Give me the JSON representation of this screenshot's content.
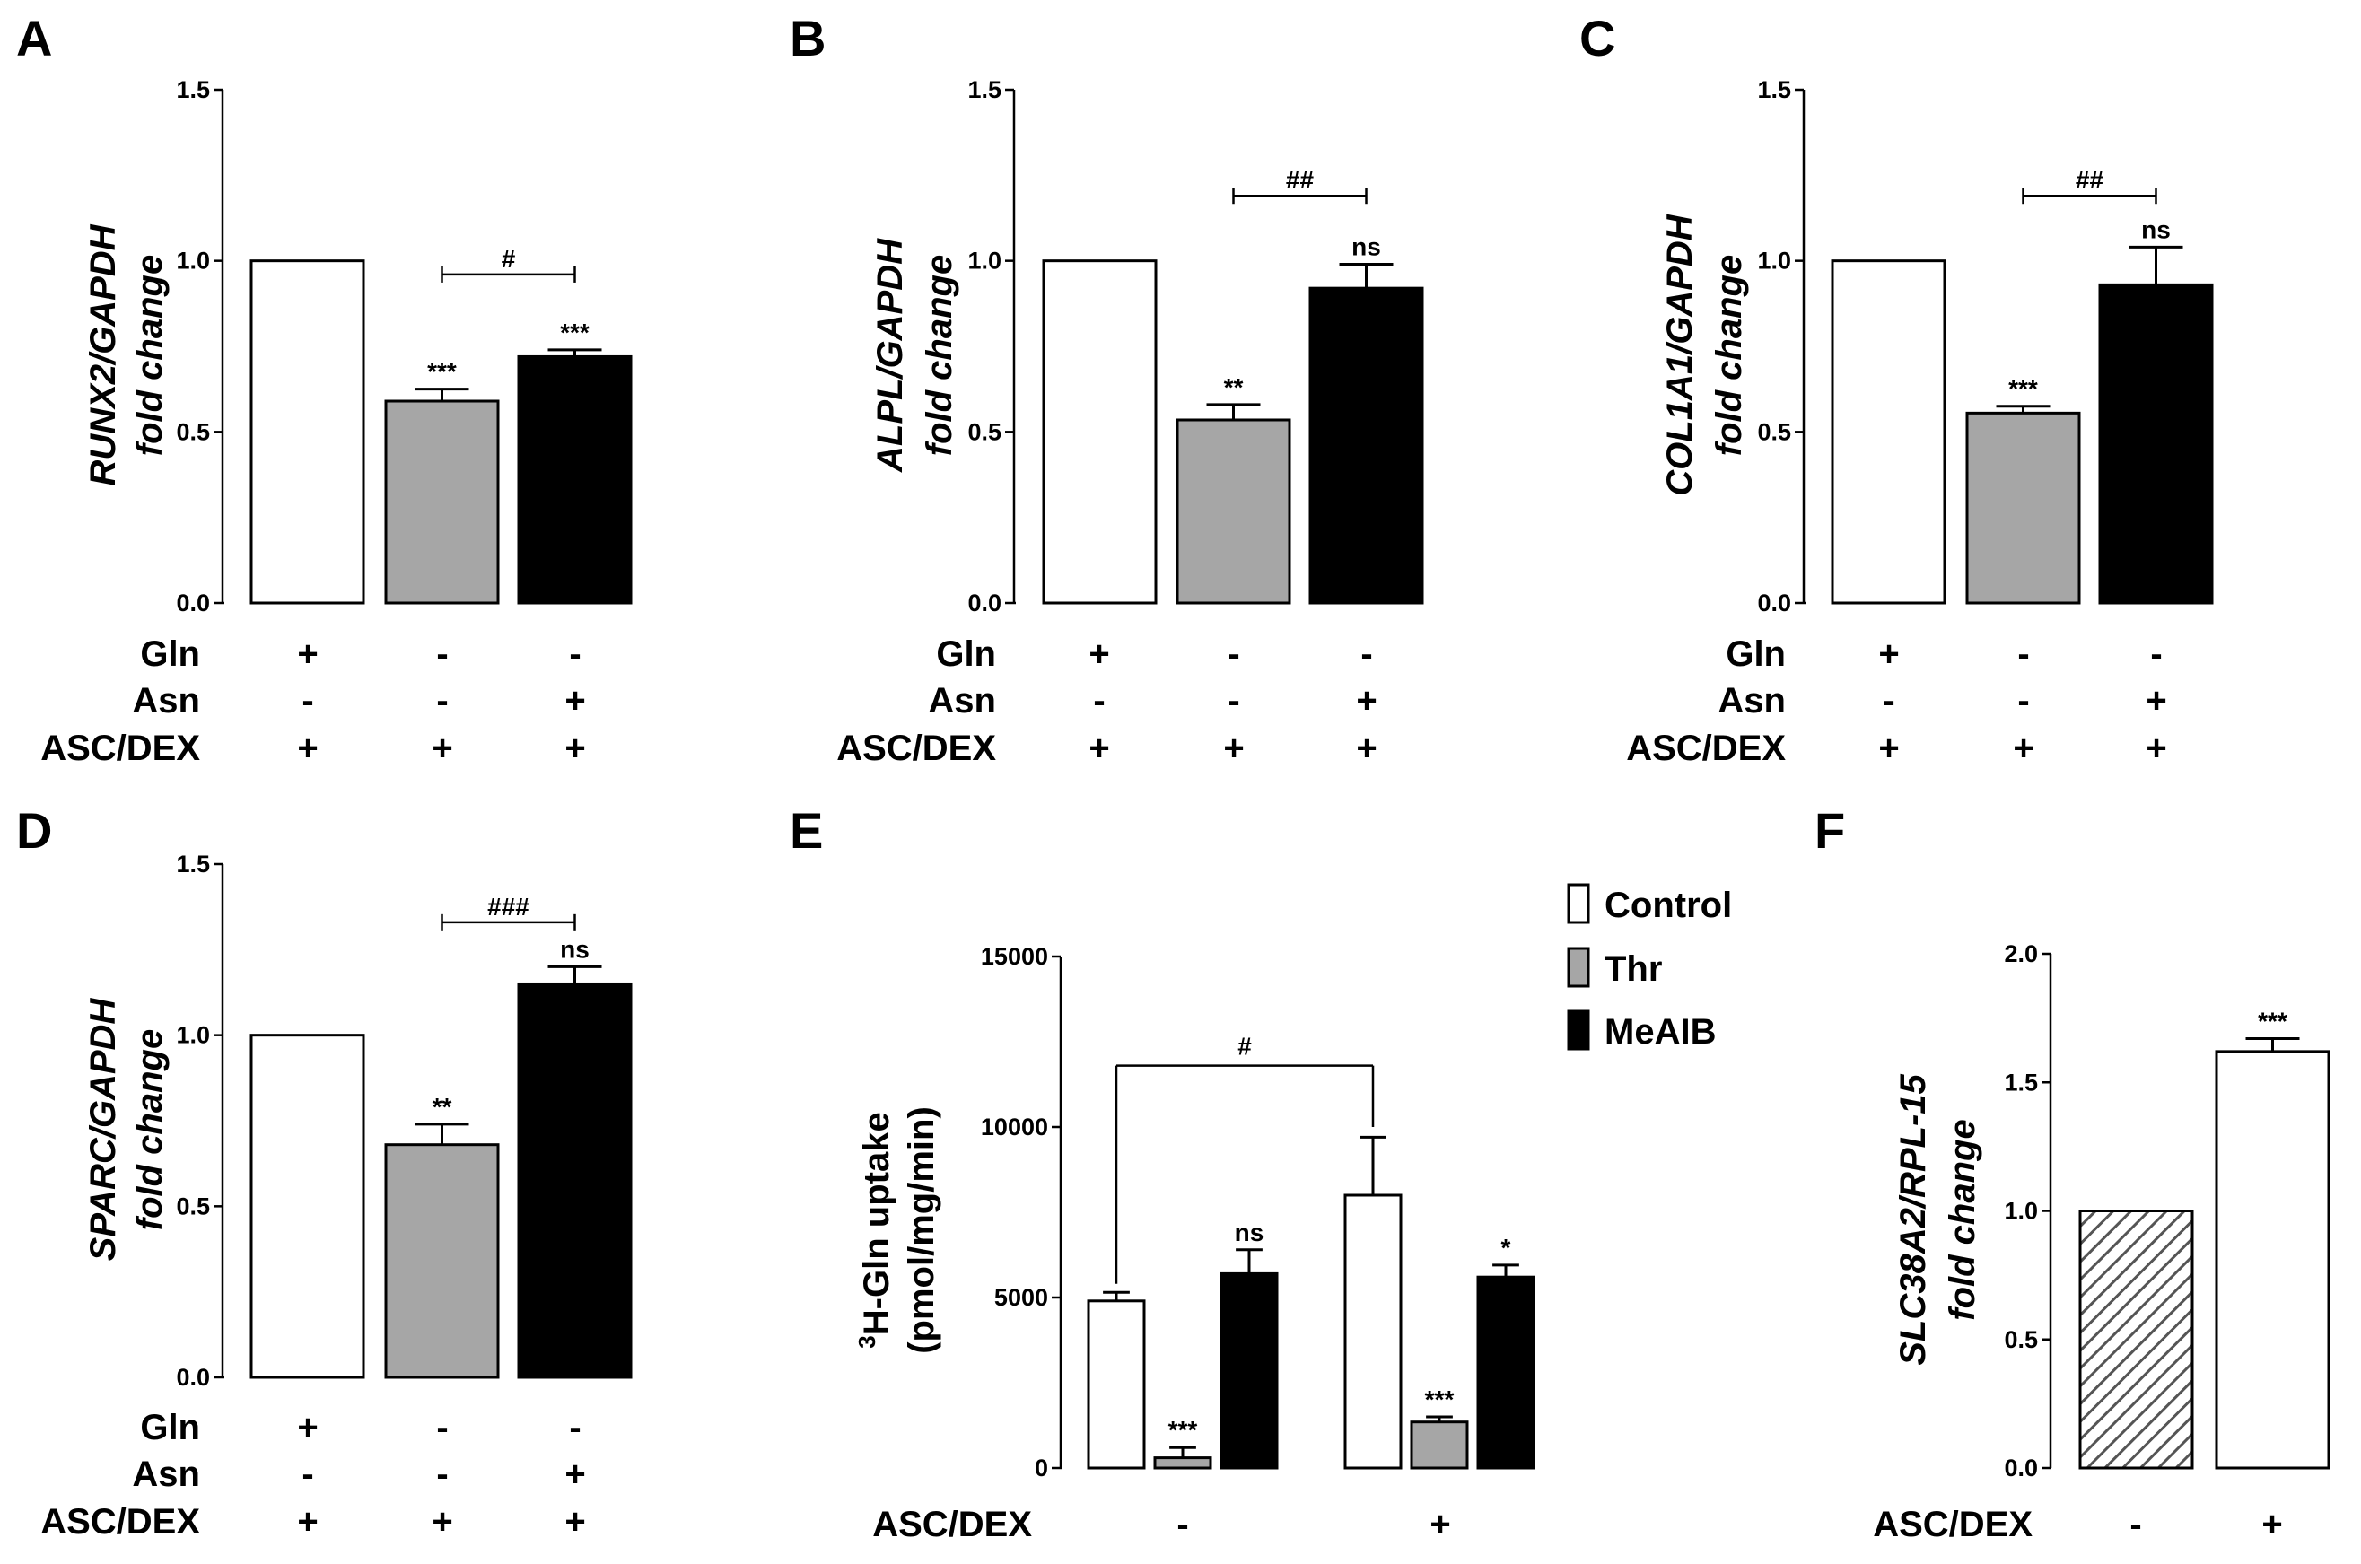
{
  "colors": {
    "control": "#ffffff",
    "thr": "#a6a6a6",
    "meaib": "#000000",
    "axis": "#000000",
    "hatch": "#555555"
  },
  "chart_data": [
    {
      "panel": "A",
      "type": "bar",
      "ylabel_italic": "RUNX2/GAPDH",
      "ylabel_plain": "fold change",
      "ylim": [
        0,
        1.5
      ],
      "yticks": [
        "0.0",
        "0.5",
        "1.0",
        "1.5"
      ],
      "values": [
        1.0,
        0.59,
        0.72
      ],
      "errors": [
        0,
        0.035,
        0.02
      ],
      "bar_colors": [
        "control",
        "thr",
        "meaib"
      ],
      "significance": [
        "",
        "***",
        "***"
      ],
      "bracket": {
        "label": "#",
        "from": 1,
        "to": 2,
        "y": 0.96
      },
      "conditions": [
        {
          "label": "Gln",
          "signs": [
            "+",
            "-",
            "-"
          ]
        },
        {
          "label": "Asn",
          "signs": [
            "-",
            "-",
            "+"
          ]
        },
        {
          "label": "ASC/DEX",
          "signs": [
            "+",
            "+",
            "+"
          ]
        }
      ]
    },
    {
      "panel": "B",
      "type": "bar",
      "ylabel_italic": "ALPL/GAPDH",
      "ylabel_plain": "fold change",
      "ylim": [
        0,
        1.5
      ],
      "yticks": [
        "0.0",
        "0.5",
        "1.0",
        "1.5"
      ],
      "values": [
        1.0,
        0.535,
        0.92
      ],
      "errors": [
        0,
        0.045,
        0.07
      ],
      "bar_colors": [
        "control",
        "thr",
        "meaib"
      ],
      "significance": [
        "",
        "**",
        "ns"
      ],
      "bracket": {
        "label": "##",
        "from": 1,
        "to": 2,
        "y": 1.19
      },
      "conditions": [
        {
          "label": "Gln",
          "signs": [
            "+",
            "-",
            "-"
          ]
        },
        {
          "label": "Asn",
          "signs": [
            "-",
            "-",
            "+"
          ]
        },
        {
          "label": "ASC/DEX",
          "signs": [
            "+",
            "+",
            "+"
          ]
        }
      ]
    },
    {
      "panel": "C",
      "type": "bar",
      "ylabel_italic": "COL1A1/GAPDH",
      "ylabel_plain": "fold change",
      "ylim": [
        0,
        1.5
      ],
      "yticks": [
        "0.0",
        "0.5",
        "1.0",
        "1.5"
      ],
      "values": [
        1.0,
        0.555,
        0.93
      ],
      "errors": [
        0,
        0.02,
        0.11
      ],
      "bar_colors": [
        "control",
        "thr",
        "meaib"
      ],
      "significance": [
        "",
        "***",
        "ns"
      ],
      "bracket": {
        "label": "##",
        "from": 1,
        "to": 2,
        "y": 1.19
      },
      "conditions": [
        {
          "label": "Gln",
          "signs": [
            "+",
            "-",
            "-"
          ]
        },
        {
          "label": "Asn",
          "signs": [
            "-",
            "-",
            "+"
          ]
        },
        {
          "label": "ASC/DEX",
          "signs": [
            "+",
            "+",
            "+"
          ]
        }
      ]
    },
    {
      "panel": "D",
      "type": "bar",
      "ylabel_italic": "SPARC/GAPDH",
      "ylabel_plain": "fold change",
      "ylim": [
        0,
        1.5
      ],
      "yticks": [
        "0.0",
        "0.5",
        "1.0",
        "1.5"
      ],
      "values": [
        1.0,
        0.68,
        1.15
      ],
      "errors": [
        0,
        0.06,
        0.05
      ],
      "bar_colors": [
        "control",
        "thr",
        "meaib"
      ],
      "significance": [
        "",
        "**",
        "ns"
      ],
      "bracket": {
        "label": "###",
        "from": 1,
        "to": 2,
        "y": 1.33
      },
      "conditions": [
        {
          "label": "Gln",
          "signs": [
            "+",
            "-",
            "-"
          ]
        },
        {
          "label": "Asn",
          "signs": [
            "-",
            "-",
            "+"
          ]
        },
        {
          "label": "ASC/DEX",
          "signs": [
            "+",
            "+",
            "+"
          ]
        }
      ]
    },
    {
      "panel": "E",
      "type": "bar",
      "ylabel_sup": "3",
      "ylabel_line1": "H-Gln uptake",
      "ylabel_line2": "(pmol/mg/min)",
      "ylim": [
        0,
        15000
      ],
      "yticks": [
        "0",
        "5000",
        "10000",
        "15000"
      ],
      "groups": [
        "-",
        "+"
      ],
      "xlabel": "ASC/DEX",
      "series": [
        {
          "name": "Control",
          "color": "control",
          "values": [
            4900,
            8000
          ],
          "errors": [
            250,
            1700
          ],
          "significance": [
            "",
            ""
          ]
        },
        {
          "name": "Thr",
          "color": "thr",
          "values": [
            300,
            1350
          ],
          "errors": [
            300,
            150
          ],
          "significance": [
            "***",
            "***"
          ]
        },
        {
          "name": "MeAIB",
          "color": "meaib",
          "values": [
            5700,
            5600
          ],
          "errors": [
            700,
            350
          ],
          "significance": [
            "ns",
            "*"
          ]
        }
      ],
      "bracket": {
        "label": "#",
        "y": 11800,
        "from_group": 0,
        "to_group": 1
      },
      "legend": [
        "Control",
        "Thr",
        "MeAIB"
      ]
    },
    {
      "panel": "F",
      "type": "bar",
      "ylabel_italic": "SLC38A2/RPL-15",
      "ylabel_plain": "fold change",
      "ylim": [
        0,
        2.0
      ],
      "yticks": [
        "0.0",
        "0.5",
        "1.0",
        "1.5",
        "2.0"
      ],
      "values": [
        1.0,
        1.62
      ],
      "errors": [
        0,
        0.05
      ],
      "bar_styles": [
        "hatched",
        "control"
      ],
      "significance": [
        "",
        "***"
      ],
      "xlabel": "ASC/DEX",
      "signs": [
        "-",
        "+"
      ]
    }
  ]
}
